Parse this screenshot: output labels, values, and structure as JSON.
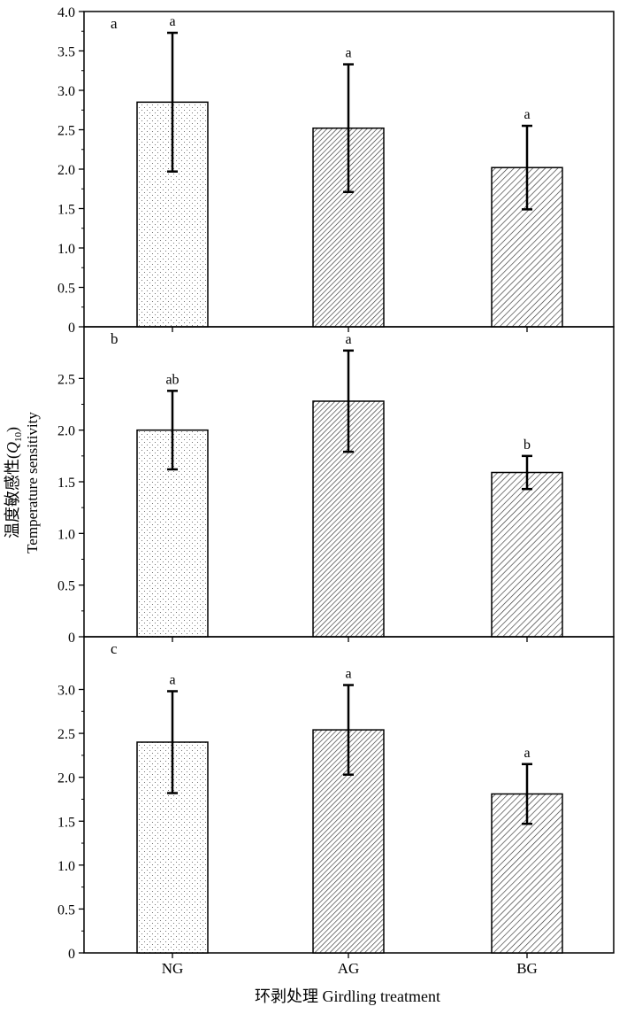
{
  "chart_data": {
    "type": "bar",
    "ylabel_cn": "温度敏感性(Q10)",
    "ylabel_en": "Temperature sensitivity",
    "xlabel": "环剥处理 Girdling treatment",
    "categories": [
      "NG",
      "AG",
      "BG"
    ],
    "panels": [
      {
        "label": "a",
        "ylim": [
          0,
          4.0
        ],
        "yticks": [
          "0",
          "0.5",
          "1.0",
          "1.5",
          "2.0",
          "2.5",
          "3.0",
          "3.5",
          "4.0"
        ],
        "values": [
          2.85,
          2.52,
          2.02
        ],
        "errors": [
          0.88,
          0.81,
          0.53
        ],
        "letters": [
          "a",
          "a",
          "a"
        ]
      },
      {
        "label": "b",
        "ylim": [
          0,
          3.0
        ],
        "yticks": [
          "0",
          "0.5",
          "1.0",
          "1.5",
          "2.0",
          "2.5"
        ],
        "values": [
          2.0,
          2.28,
          1.59
        ],
        "errors": [
          0.38,
          0.49,
          0.16
        ],
        "letters": [
          "ab",
          "a",
          "b"
        ]
      },
      {
        "label": "c",
        "ylim": [
          0,
          3.6
        ],
        "yticks": [
          "0",
          "0.5",
          "1.0",
          "1.5",
          "2.0",
          "2.5",
          "3.0"
        ],
        "values": [
          2.4,
          2.54,
          1.81
        ],
        "errors": [
          0.58,
          0.51,
          0.34
        ],
        "letters": [
          "a",
          "a",
          "a"
        ]
      }
    ],
    "patterns": [
      "dots",
      "hatch-dense",
      "hatch-sparse"
    ]
  }
}
